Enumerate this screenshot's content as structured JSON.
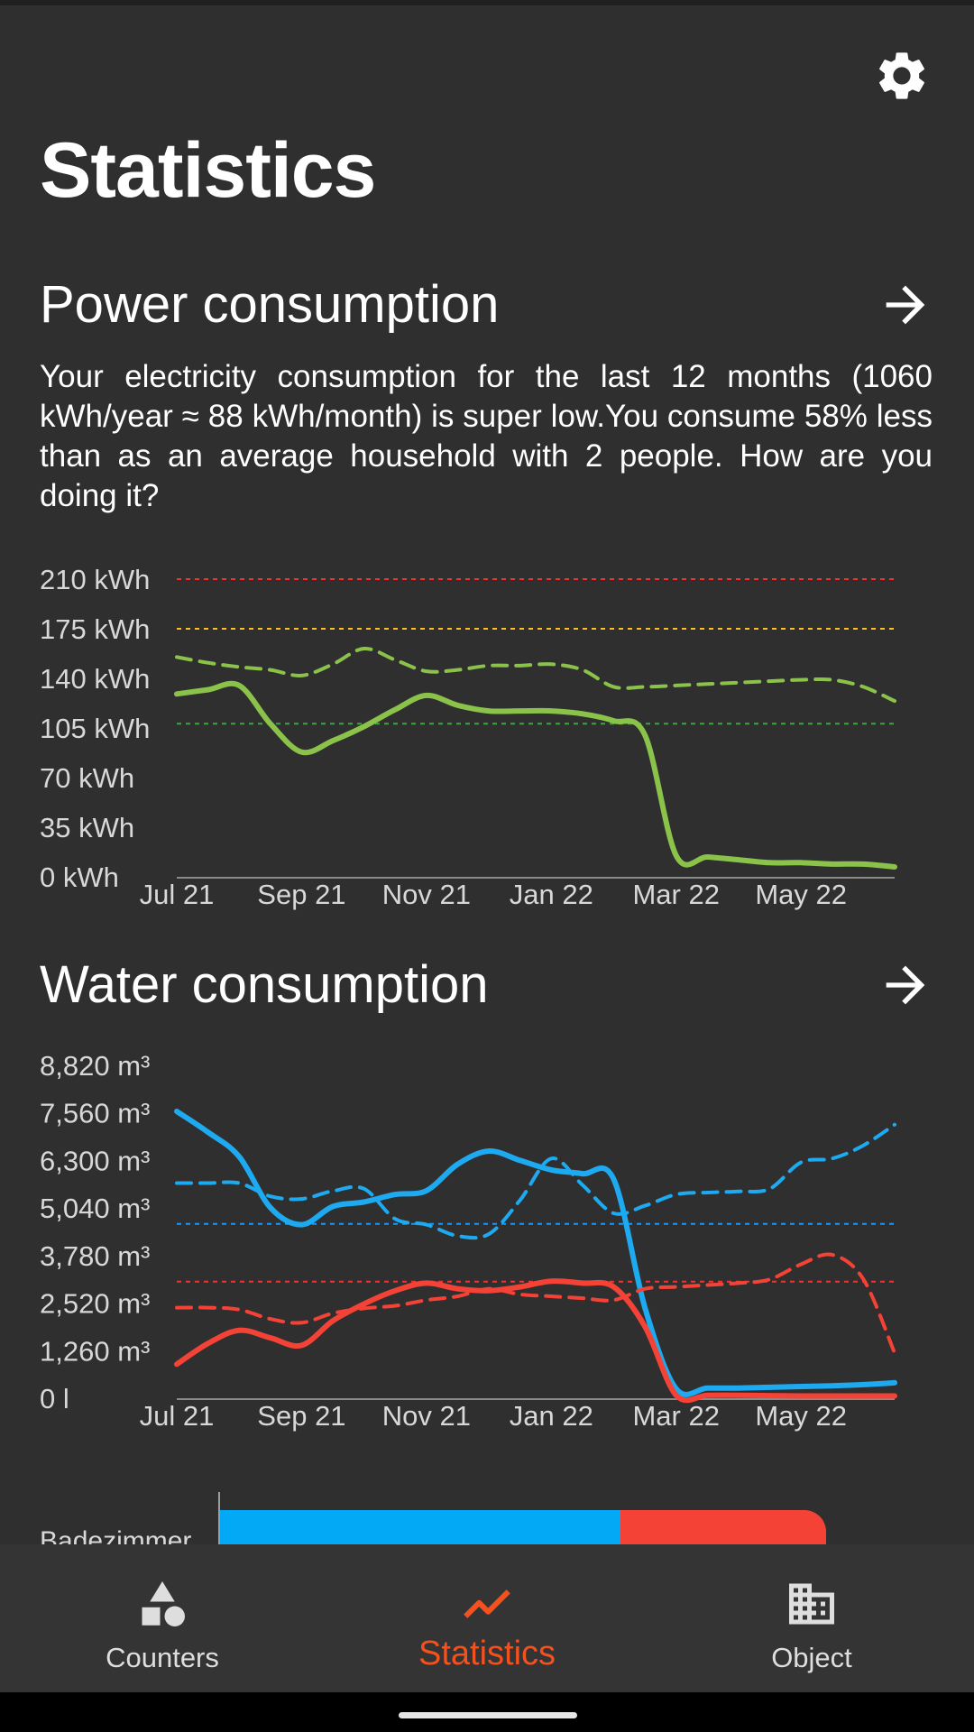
{
  "page": {
    "title": "Statistics"
  },
  "icons": {
    "settings": "gear-icon",
    "arrow": "arrow-right-icon"
  },
  "power": {
    "title": "Power consumption",
    "description": "Your electricity consumption for the last 12 months (1060 kWh/year ≈ 88 kWh/month) is super low.You consume 58% less than as an average household with 2 people. How are you doing it?",
    "chart_data": {
      "type": "line",
      "y_ticks": [
        "0 kWh",
        "35 kWh",
        "70 kWh",
        "105 kWh",
        "140 kWh",
        "175 kWh",
        "210 kWh"
      ],
      "ylim": [
        0,
        210
      ],
      "x_ticks": [
        "Jul 21",
        "Sep 21",
        "Nov 21",
        "Jan 22",
        "Mar 22",
        "May 22"
      ],
      "x": [
        0,
        0.5,
        1,
        1.5,
        2,
        2.5,
        3,
        3.5,
        4,
        4.5,
        5,
        5.5,
        6,
        6.5,
        7,
        7.5,
        8,
        8.5,
        9,
        9.5,
        10,
        10.5,
        11,
        11.5
      ],
      "series": [
        {
          "style": "solid",
          "color": "#8bc34a",
          "values": [
            129,
            132,
            135,
            108,
            88,
            96,
            106,
            118,
            128,
            121,
            117,
            117,
            117,
            115,
            110,
            100,
            15,
            14,
            12,
            10,
            10,
            9,
            9,
            7
          ]
        },
        {
          "style": "dashed",
          "color": "#8bc34a",
          "values": [
            155,
            151,
            148,
            146,
            142,
            150,
            161,
            153,
            145,
            146,
            149,
            149,
            150,
            146,
            134,
            134,
            135,
            136,
            137,
            138,
            139,
            139,
            134,
            124
          ]
        }
      ],
      "reference_lines": [
        {
          "value": 210,
          "color": "#e53935"
        },
        {
          "value": 175,
          "color": "#fbc02d"
        },
        {
          "value": 108,
          "color": "#43a047"
        }
      ]
    }
  },
  "water": {
    "title": "Water consumption",
    "chart_data": {
      "type": "line",
      "y_ticks": [
        "0 l",
        "1,260 m³",
        "2,520 m³",
        "3,780 m³",
        "5,040 m³",
        "6,300 m³",
        "7,560 m³",
        "8,820 m³"
      ],
      "ylim": [
        0,
        8820
      ],
      "x_ticks": [
        "Jul 21",
        "Sep 21",
        "Nov 21",
        "Jan 22",
        "Mar 22",
        "May 22"
      ],
      "x": [
        0,
        0.5,
        1,
        1.5,
        2,
        2.5,
        3,
        3.5,
        4,
        4.5,
        5,
        5.5,
        6,
        6.5,
        7,
        7.5,
        8,
        8.5,
        9,
        9.5,
        10,
        10.5,
        11,
        11.5
      ],
      "series": [
        {
          "style": "solid",
          "color": "#1eaaf1",
          "values": [
            7600,
            7050,
            6400,
            5050,
            4600,
            5080,
            5200,
            5400,
            5500,
            6200,
            6550,
            6300,
            6050,
            5950,
            5800,
            2400,
            250,
            270,
            270,
            290,
            310,
            330,
            360,
            410
          ]
        },
        {
          "style": "dashed",
          "color": "#1eaaf1",
          "values": [
            5700,
            5700,
            5700,
            5350,
            5280,
            5490,
            5550,
            4750,
            4600,
            4300,
            4350,
            5250,
            6350,
            5650,
            4900,
            5100,
            5400,
            5450,
            5480,
            5550,
            6250,
            6350,
            6700,
            7250
          ]
        },
        {
          "style": "solid",
          "color": "#f44336",
          "values": [
            900,
            1450,
            1800,
            1600,
            1400,
            2050,
            2500,
            2850,
            3050,
            2900,
            2850,
            2950,
            3100,
            3050,
            2950,
            1900,
            80,
            80,
            80,
            70,
            60,
            60,
            60,
            60
          ]
        },
        {
          "style": "dashed",
          "color": "#f44336",
          "values": [
            2400,
            2400,
            2350,
            2100,
            2000,
            2250,
            2380,
            2450,
            2600,
            2700,
            2900,
            2750,
            2700,
            2650,
            2600,
            2900,
            2950,
            3000,
            3050,
            3150,
            3550,
            3800,
            3150,
            1200
          ]
        }
      ],
      "reference_lines": [
        {
          "value": 4620,
          "color": "#2196f3"
        },
        {
          "value": 3090,
          "color": "#e53935"
        }
      ]
    }
  },
  "room_bar": {
    "label": "Badezimmer",
    "shares": [
      {
        "color": "#03a9f4",
        "fraction": 0.66
      },
      {
        "color": "#f44336",
        "fraction": 0.34
      }
    ]
  },
  "nav": {
    "items": [
      {
        "label": "Counters",
        "icon": "shapes-icon"
      },
      {
        "label": "Statistics",
        "icon": "trending-up-icon",
        "active": true
      },
      {
        "label": "Object",
        "icon": "building-icon"
      }
    ]
  },
  "colors": {
    "background": "#2f2f2f",
    "accent": "#f4511e"
  }
}
